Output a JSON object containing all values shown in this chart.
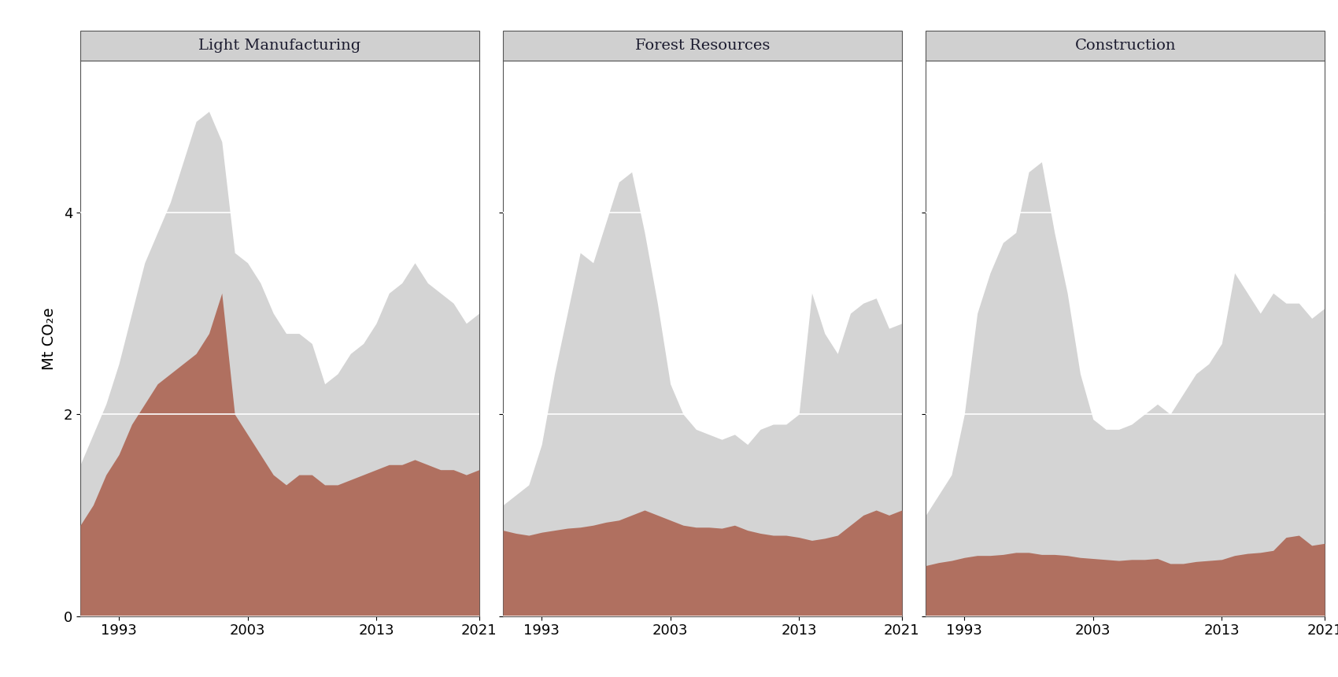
{
  "panels": [
    {
      "title": "Light Manufacturing",
      "years": [
        1990,
        1991,
        1992,
        1993,
        1994,
        1995,
        1996,
        1997,
        1998,
        1999,
        2000,
        2001,
        2002,
        2003,
        2004,
        2005,
        2006,
        2007,
        2008,
        2009,
        2010,
        2011,
        2012,
        2013,
        2014,
        2015,
        2016,
        2017,
        2018,
        2019,
        2020,
        2021
      ],
      "gray": [
        1.5,
        1.8,
        2.1,
        2.5,
        3.0,
        3.5,
        3.8,
        4.1,
        4.5,
        4.9,
        5.0,
        4.7,
        3.6,
        3.5,
        3.3,
        3.0,
        2.8,
        2.8,
        2.7,
        2.3,
        2.4,
        2.6,
        2.7,
        2.9,
        3.2,
        3.3,
        3.5,
        3.3,
        3.2,
        3.1,
        2.9,
        3.0
      ],
      "brown": [
        0.9,
        1.1,
        1.4,
        1.6,
        1.9,
        2.1,
        2.3,
        2.4,
        2.5,
        2.6,
        2.8,
        3.2,
        2.0,
        1.8,
        1.6,
        1.4,
        1.3,
        1.4,
        1.4,
        1.3,
        1.3,
        1.35,
        1.4,
        1.45,
        1.5,
        1.5,
        1.55,
        1.5,
        1.45,
        1.45,
        1.4,
        1.45
      ]
    },
    {
      "title": "Forest Resources",
      "years": [
        1990,
        1991,
        1992,
        1993,
        1994,
        1995,
        1996,
        1997,
        1998,
        1999,
        2000,
        2001,
        2002,
        2003,
        2004,
        2005,
        2006,
        2007,
        2008,
        2009,
        2010,
        2011,
        2012,
        2013,
        2014,
        2015,
        2016,
        2017,
        2018,
        2019,
        2020,
        2021
      ],
      "gray": [
        1.1,
        1.2,
        1.3,
        1.7,
        2.4,
        3.0,
        3.6,
        3.5,
        3.9,
        4.3,
        4.4,
        3.8,
        3.1,
        2.3,
        2.0,
        1.85,
        1.8,
        1.75,
        1.8,
        1.7,
        1.85,
        1.9,
        1.9,
        2.0,
        3.2,
        2.8,
        2.6,
        3.0,
        3.1,
        3.15,
        2.85,
        2.9
      ],
      "brown": [
        0.85,
        0.82,
        0.8,
        0.83,
        0.85,
        0.87,
        0.88,
        0.9,
        0.93,
        0.95,
        1.0,
        1.05,
        1.0,
        0.95,
        0.9,
        0.88,
        0.88,
        0.87,
        0.9,
        0.85,
        0.82,
        0.8,
        0.8,
        0.78,
        0.75,
        0.77,
        0.8,
        0.9,
        1.0,
        1.05,
        1.0,
        1.05
      ]
    },
    {
      "title": "Construction",
      "years": [
        1990,
        1991,
        1992,
        1993,
        1994,
        1995,
        1996,
        1997,
        1998,
        1999,
        2000,
        2001,
        2002,
        2003,
        2004,
        2005,
        2006,
        2007,
        2008,
        2009,
        2010,
        2011,
        2012,
        2013,
        2014,
        2015,
        2016,
        2017,
        2018,
        2019,
        2020,
        2021
      ],
      "gray": [
        1.0,
        1.2,
        1.4,
        2.0,
        3.0,
        3.4,
        3.7,
        3.8,
        4.4,
        4.5,
        3.8,
        3.2,
        2.4,
        1.95,
        1.85,
        1.85,
        1.9,
        2.0,
        2.1,
        2.0,
        2.2,
        2.4,
        2.5,
        2.7,
        3.4,
        3.2,
        3.0,
        3.2,
        3.1,
        3.1,
        2.95,
        3.05
      ],
      "brown": [
        0.5,
        0.53,
        0.55,
        0.58,
        0.6,
        0.6,
        0.61,
        0.63,
        0.63,
        0.61,
        0.61,
        0.6,
        0.58,
        0.57,
        0.56,
        0.55,
        0.56,
        0.56,
        0.57,
        0.52,
        0.52,
        0.54,
        0.55,
        0.56,
        0.6,
        0.62,
        0.63,
        0.65,
        0.78,
        0.8,
        0.7,
        0.72
      ]
    }
  ],
  "ylim": [
    0,
    5.5
  ],
  "yticks": [
    0,
    2,
    4
  ],
  "gray_color": "#d4d4d4",
  "brown_color": "#b07060",
  "title_bg_color": "#d0d0d0",
  "title_text_color": "#1a1a2e",
  "ylabel": "Mt CO₂e",
  "background_color": "#ffffff",
  "xticks": [
    1993,
    2003,
    2013,
    2021
  ],
  "grid_color": "#ffffff",
  "spine_color": "#555555"
}
